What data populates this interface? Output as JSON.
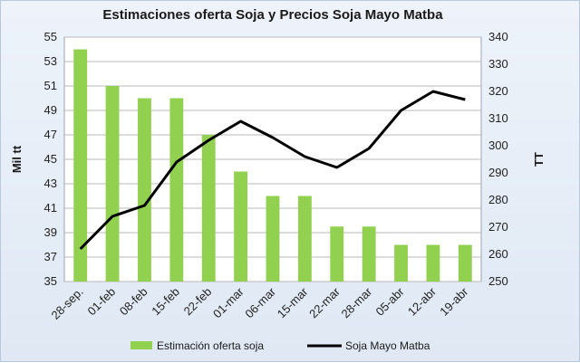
{
  "chart_data": {
    "type": "bar",
    "title": "Estimaciones oferta Soja y Precios Soja Mayo Matba",
    "categories": [
      "28-sep.",
      "01-feb",
      "08-feb",
      "15-feb",
      "22-feb",
      "01-mar",
      "06-mar",
      "15-mar",
      "22-mar",
      "28-mar",
      "05-abr",
      "12-abr",
      "19-abr"
    ],
    "ylabel_left": "Mil tt",
    "ylabel_right": "TT",
    "ylim_left": [
      35,
      55
    ],
    "yticks_left": [
      "35",
      "37",
      "39",
      "41",
      "43",
      "45",
      "47",
      "49",
      "51",
      "53",
      "55"
    ],
    "ylim_right": [
      250,
      340
    ],
    "yticks_right": [
      "250",
      "260",
      "270",
      "280",
      "290",
      "300",
      "310",
      "320",
      "330",
      "340"
    ],
    "grid": true,
    "legend_position": "bottom",
    "series": [
      {
        "name": "Estimación oferta soja",
        "type": "bar",
        "axis": "left",
        "color": "#92d050",
        "values": [
          54,
          51,
          50,
          50,
          47,
          44,
          42,
          42,
          39.5,
          39.5,
          38,
          38,
          38
        ]
      },
      {
        "name": "Soja Mayo Matba",
        "type": "line",
        "axis": "right",
        "color": "#000000",
        "values": [
          262,
          274,
          278,
          294,
          302,
          309,
          303,
          296,
          292,
          299,
          313,
          320,
          317
        ]
      }
    ]
  }
}
